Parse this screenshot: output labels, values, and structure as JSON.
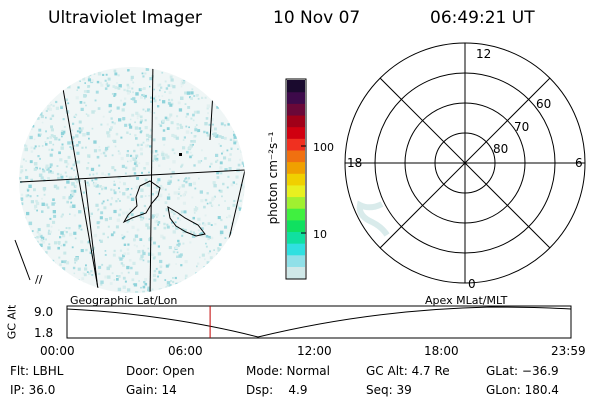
{
  "header": {
    "title": "Ultraviolet Imager",
    "date": "10 Nov 07",
    "time": "06:49:21 UT"
  },
  "colorbar": {
    "label": "photon cm⁻²s⁻¹",
    "ticks": [
      "100",
      "10"
    ],
    "colors": [
      "#1a0a2e",
      "#3d0a4a",
      "#6a0838",
      "#a00018",
      "#d00010",
      "#f03020",
      "#f07010",
      "#f0a000",
      "#f0d000",
      "#e8f020",
      "#a0f030",
      "#40f040",
      "#10e060",
      "#10e0a0",
      "#30e0e0",
      "#90e0e8",
      "#d0e8e8"
    ]
  },
  "polar_plot": {
    "clock_labels": [
      "12",
      "6",
      "0",
      "18"
    ],
    "lat_labels": [
      "60",
      "70",
      "80"
    ]
  },
  "timeline": {
    "left_label": "Geographic Lat/Lon",
    "right_label": "Apex  MLat/MLT",
    "axis_title": "GC Alt",
    "y_ticks": [
      "9.0",
      "1.8"
    ],
    "x_ticks": [
      "00:00",
      "06:00",
      "12:00",
      "18:00",
      "23:59"
    ],
    "current_time_fraction": 0.284
  },
  "info": {
    "row1": [
      "Flt: LBHL",
      "Door: Open",
      "Mode: Normal",
      "GC Alt: 4.7 Re",
      "GLat: −36.9"
    ],
    "row2": [
      "IP: 36.0",
      "Gain: 14",
      "Dsp:    4.9",
      "Seq: 39",
      "GLon: 180.4"
    ]
  }
}
